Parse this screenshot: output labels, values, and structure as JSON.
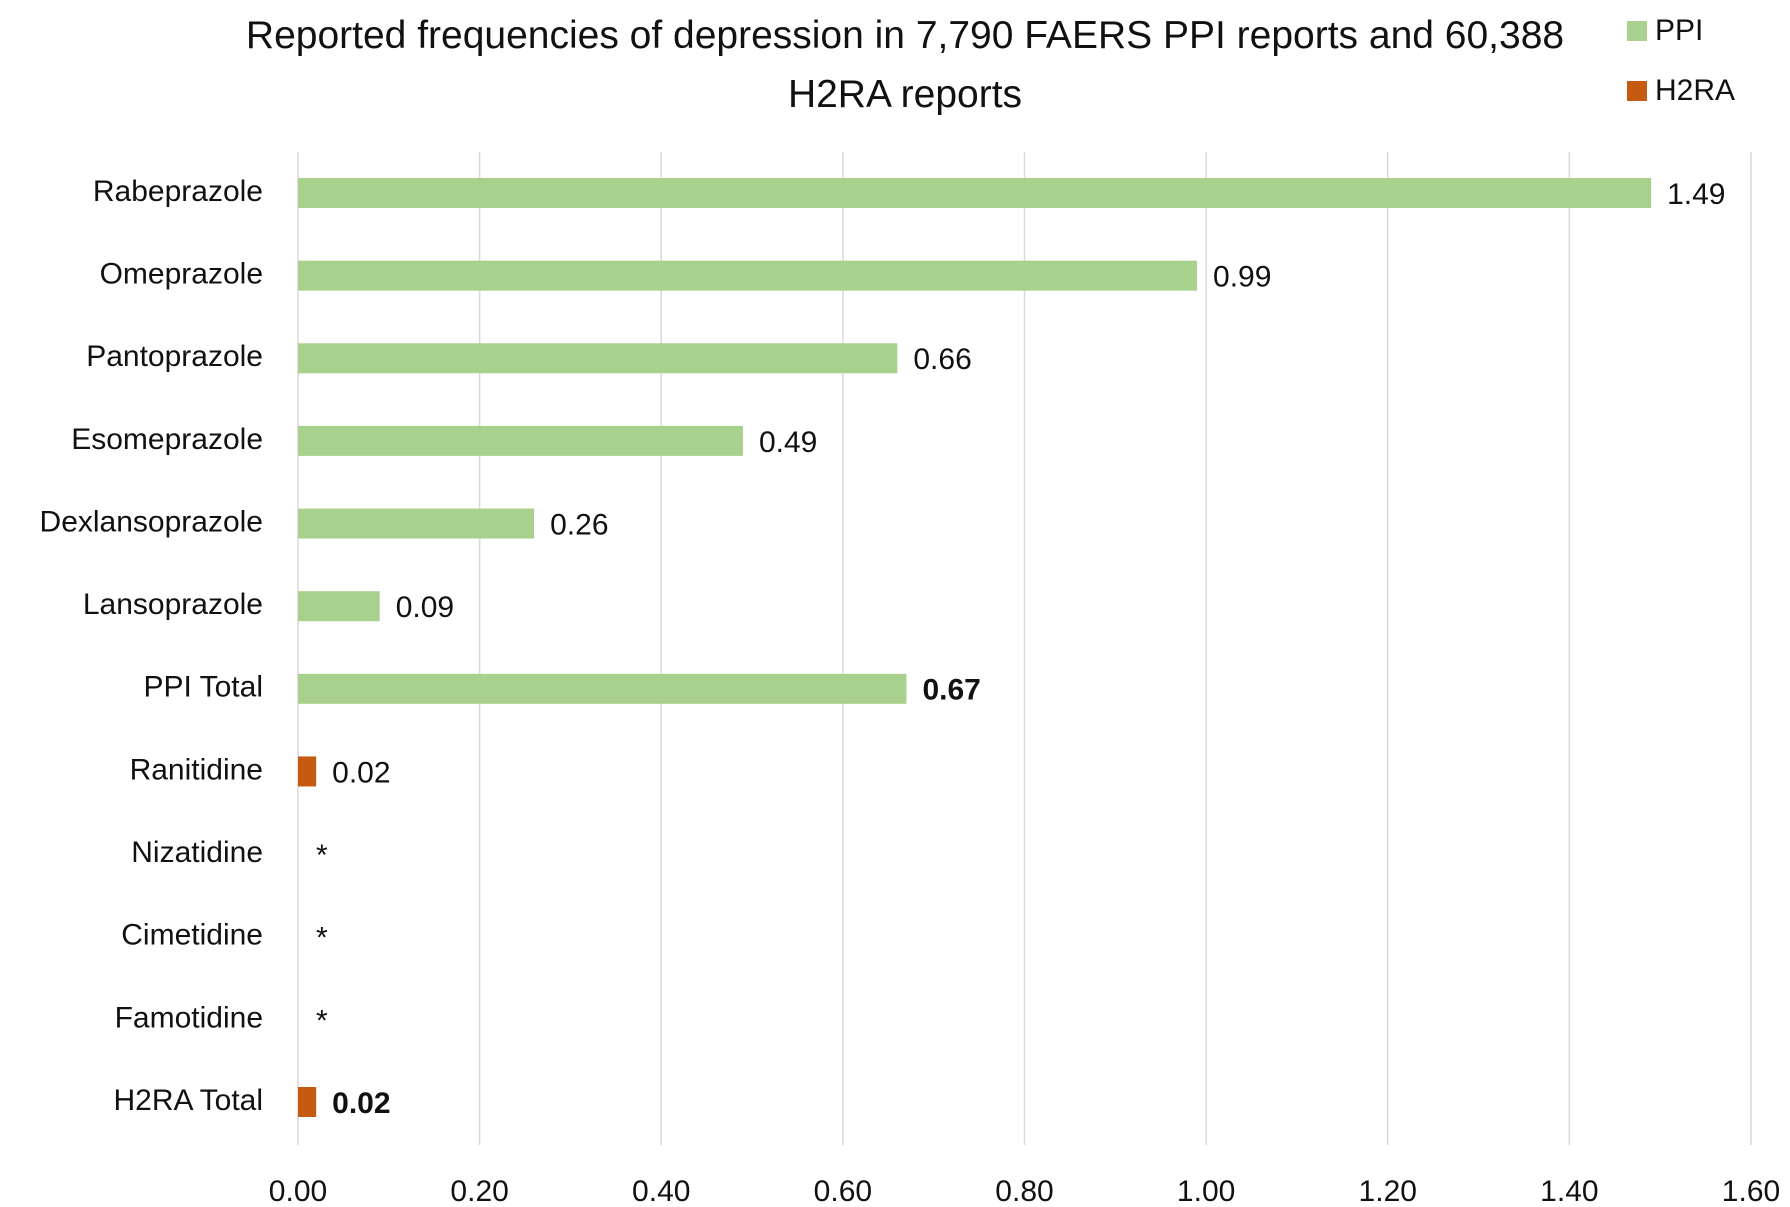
{
  "chart_data": {
    "type": "hbar",
    "title": "Reported frequencies of depression in 7,790 FAERS PPI reports and 60,388 H2RA reports",
    "categories": [
      "Rabeprazole",
      "Omeprazole",
      "Pantoprazole",
      "Esomeprazole",
      "Dexlansoprazole",
      "Lansoprazole",
      "PPI Total",
      "Ranitidine",
      "Nizatidine",
      "Cimetidine",
      "Famotidine",
      "H2RA Total"
    ],
    "series": [
      {
        "name": "PPI",
        "color": "#a9d18e",
        "values": [
          1.49,
          0.99,
          0.66,
          0.49,
          0.26,
          0.09,
          0.67,
          null,
          null,
          null,
          null,
          null
        ]
      },
      {
        "name": "H2RA",
        "color": "#c55a11",
        "values": [
          null,
          null,
          null,
          null,
          null,
          null,
          null,
          0.02,
          null,
          null,
          null,
          0.02
        ],
        "value_labels": [
          null,
          null,
          null,
          null,
          null,
          null,
          null,
          null,
          "*",
          "*",
          "*",
          null
        ]
      }
    ],
    "xlim": [
      0,
      1.6
    ],
    "xticks": [
      {
        "value": 0,
        "label": "0.00"
      },
      {
        "value": 0.2,
        "label": "0.20"
      },
      {
        "value": 0.4,
        "label": "0.40"
      },
      {
        "value": 0.6,
        "label": "0.60"
      },
      {
        "value": 0.8,
        "label": "0.80"
      },
      {
        "value": 1.0,
        "label": "1.00"
      },
      {
        "value": 1.2,
        "label": "1.20"
      },
      {
        "value": 1.4,
        "label": "1.40"
      },
      {
        "value": 1.6,
        "label": "1.60"
      }
    ],
    "grid": true,
    "legend": "top-right"
  }
}
